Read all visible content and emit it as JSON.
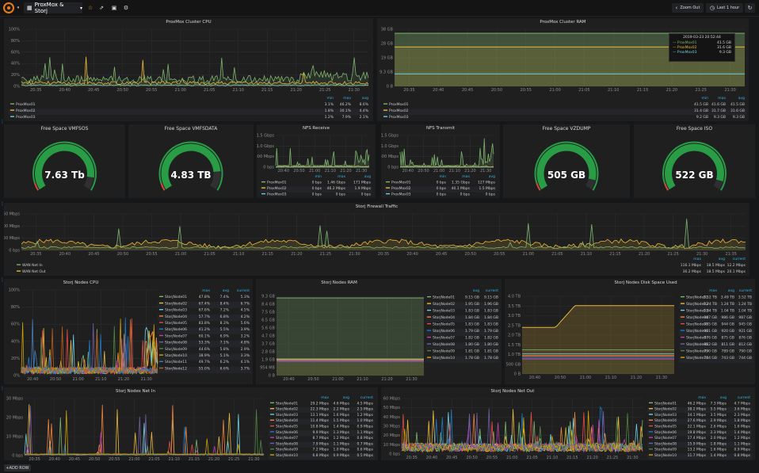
{
  "topbar": {
    "dashboard_title": "ProxMox & Storj",
    "time_range": "Zoom Out",
    "range_label": "Last 1 hour",
    "icons": [
      "grafana-logo-icon",
      "star-icon",
      "share-icon",
      "save-icon",
      "gear-icon",
      "zoom-out-icon",
      "clock-icon",
      "refresh-icon"
    ]
  },
  "colors": {
    "bg": "#161719",
    "panel": "#1f1f20",
    "green": "#7eb26d",
    "yellow": "#eab839",
    "blue": "#6ed0e0",
    "orange": "#ef843c",
    "red": "#e24d42",
    "gauge_green": "#299c46",
    "gauge_red": "#d44a3a"
  },
  "panels": {
    "cpu": {
      "title": "ProxMox Cluster CPU",
      "yticks": [
        "100%",
        "80%",
        "60%",
        "40%",
        "20%",
        "0%"
      ],
      "xticks": [
        "20:35",
        "20:40",
        "20:45",
        "20:50",
        "20:55",
        "21:00",
        "21:05",
        "21:10",
        "21:15",
        "21:20",
        "21:25",
        "21:30"
      ],
      "legend_headers": [
        "min",
        "max",
        "avg"
      ],
      "legend": [
        {
          "name": "ProxMox01",
          "min": "3.1%",
          "max": "46.2%",
          "avg": "8.6%"
        },
        {
          "name": "ProxMox02",
          "min": "1.8%",
          "max": "30.1%",
          "avg": "4.4%"
        },
        {
          "name": "ProxMox03",
          "min": "1.2%",
          "max": "7.9%",
          "avg": "2.1%"
        }
      ]
    },
    "ram": {
      "title": "ProxMox Cluster RAM",
      "yticks": [
        "38 GB",
        "28 GB",
        "19 GB",
        "9.3 GB",
        "0 B"
      ],
      "xticks": [
        "20:35",
        "20:40",
        "20:45",
        "20:50",
        "20:55",
        "21:00",
        "21:05",
        "21:10",
        "21:15",
        "21:20",
        "21:25",
        "21:30"
      ],
      "tooltip": {
        "time": "2019-03-23 20:52:44",
        "rows": [
          {
            "name": "ProxMox01",
            "value": "41.5 GB"
          },
          {
            "name": "ProxMox02",
            "value": "31.6 GB"
          },
          {
            "name": "ProxMox03",
            "value": "9.3 GB"
          }
        ]
      },
      "legend_headers": [
        "min",
        "max",
        "avg"
      ],
      "legend": [
        {
          "name": "ProxMox01",
          "min": "41.5 GB",
          "max": "41.6 GB",
          "avg": "41.5 GB"
        },
        {
          "name": "ProxMox02",
          "min": "31.4 GB",
          "max": "31.7 GB",
          "avg": "31.6 GB"
        },
        {
          "name": "ProxMox03",
          "min": "9.2 GB",
          "max": "9.3 GB",
          "avg": "9.3 GB"
        }
      ]
    },
    "gauge_vmfsos": {
      "title": "Free Space VMFSOS",
      "value": "7.63 Tb",
      "fraction": 0.9
    },
    "gauge_vmfsdata": {
      "title": "Free Space VMFSDATA",
      "value": "4.83 TB",
      "fraction": 0.85
    },
    "nfs_receive": {
      "title": "NFS Receive",
      "yticks": [
        "1.5 Gbps",
        "1.0 Gbps",
        "500 Mbps",
        "0 bps"
      ],
      "xticks": [
        "20:40",
        "20:50",
        "21:00",
        "21:10",
        "21:20",
        "21:30"
      ],
      "legend_headers": [
        "min",
        "max",
        "avg"
      ],
      "legend": [
        {
          "name": "ProxMox01",
          "min": "0 bps",
          "max": "1.46 Gbps",
          "avg": "171 Mbps"
        },
        {
          "name": "ProxMox02",
          "min": "0 bps",
          "max": "46.2 Mbps",
          "avg": "1.9 Mbps"
        },
        {
          "name": "ProxMox03",
          "min": "0 bps",
          "max": "0 bps",
          "avg": "0 bps"
        }
      ]
    },
    "nfs_transmit": {
      "title": "NFS Transmit",
      "yticks": [
        "1.5 Gbps",
        "1.0 Gbps",
        "500 Mbps",
        "0 bps"
      ],
      "xticks": [
        "20:40",
        "20:50",
        "21:00",
        "21:10",
        "21:20",
        "21:30"
      ],
      "legend_headers": [
        "min",
        "max",
        "avg"
      ],
      "legend": [
        {
          "name": "ProxMox01",
          "min": "0 bps",
          "max": "1.35 Gbps",
          "avg": "127 Mbps"
        },
        {
          "name": "ProxMox02",
          "min": "0 bps",
          "max": "40.1 Mbps",
          "avg": "1.5 Mbps"
        },
        {
          "name": "ProxMox03",
          "min": "0 bps",
          "max": "0 bps",
          "avg": "0 bps"
        }
      ]
    },
    "gauge_vzdump": {
      "title": "Free Space VZDUMP",
      "value": "505 GB",
      "fraction": 0.92
    },
    "gauge_iso": {
      "title": "Free Space ISO",
      "value": "522 GB",
      "fraction": 0.93
    },
    "firewall": {
      "title": "Storj Firewall Traffic",
      "yticks": [
        "150 Mbps",
        "100 Mbps",
        "50 Mbps",
        "0 bps"
      ],
      "xticks": [
        "20:35",
        "20:40",
        "20:45",
        "20:50",
        "20:55",
        "21:00",
        "21:05",
        "21:10",
        "21:15",
        "21:20",
        "21:25",
        "21:30",
        "20:35",
        "20:40",
        "20:45",
        "20:50",
        "20:55",
        "21:00",
        "21:05",
        "21:10",
        "21:15",
        "21:20",
        "21:25",
        "21:30",
        "21:35"
      ],
      "legend_headers": [
        "max",
        "avg",
        "current"
      ],
      "legend": [
        {
          "name": "WAN Net In",
          "max": "116.1 Mbps",
          "avg": "18.5 Mbps",
          "current": "12.2 Mbps"
        },
        {
          "name": "WAN Net Out",
          "max": "36.2 Mbps",
          "avg": "18.5 Mbps",
          "current": "20.1 Mbps"
        }
      ]
    },
    "storj_cpu": {
      "title": "Storj Nodes CPU",
      "yticks": [
        "100%",
        "80%",
        "60%",
        "40%",
        "20%",
        "0%"
      ],
      "xticks": [
        "20:40",
        "20:50",
        "21:00",
        "21:10",
        "21:20",
        "21:30"
      ],
      "legend_headers": [
        "max",
        "avg",
        "current"
      ],
      "legend": [
        {
          "name": "StorjNode01",
          "max": "47.8%",
          "avg": "7.4%",
          "current": "5.3%"
        },
        {
          "name": "StorjNode02",
          "max": "67.4%",
          "avg": "8.4%",
          "current": "6.7%"
        },
        {
          "name": "StorjNode03",
          "max": "67.6%",
          "avg": "7.2%",
          "current": "4.5%"
        },
        {
          "name": "StorjNode04",
          "max": "57.7%",
          "avg": "6.8%",
          "current": "4.2%"
        },
        {
          "name": "StorjNode05",
          "max": "83.8%",
          "avg": "8.3%",
          "current": "5.6%"
        },
        {
          "name": "StorjNode06",
          "max": "41.2%",
          "avg": "5.5%",
          "current": "3.9%"
        },
        {
          "name": "StorjNode07",
          "max": "60.1%",
          "avg": "6.9%",
          "current": "3.2%"
        },
        {
          "name": "StorjNode08",
          "max": "53.3%",
          "avg": "7.1%",
          "current": "4.8%"
        },
        {
          "name": "StorjNode09",
          "max": "44.6%",
          "avg": "5.8%",
          "current": "2.9%"
        },
        {
          "name": "StorjNode10",
          "max": "38.9%",
          "avg": "5.1%",
          "current": "3.3%"
        },
        {
          "name": "StorjNode11",
          "max": "49.7%",
          "avg": "6.2%",
          "current": "4.1%"
        },
        {
          "name": "StorjNode12",
          "max": "55.0%",
          "avg": "6.6%",
          "current": "3.7%"
        }
      ]
    },
    "storj_ram": {
      "title": "Storj Nodes RAM",
      "yticks": [
        "9.3 GB",
        "8.4 GB",
        "7.5 GB",
        "6.5 GB",
        "5.6 GB",
        "4.7 GB",
        "3.7 GB",
        "2.8 GB",
        "1.9 GB",
        "954 MB",
        "0 B"
      ],
      "xticks": [
        "20:40",
        "20:50",
        "21:00",
        "21:10",
        "21:20",
        "21:30"
      ],
      "legend_headers": [
        "avg",
        "current"
      ],
      "legend": [
        {
          "name": "StorjNode01",
          "avg": "9.15 GB",
          "current": "9.15 GB"
        },
        {
          "name": "StorjNode02",
          "avg": "1.95 GB",
          "current": "1.96 GB"
        },
        {
          "name": "StorjNode03",
          "avg": "1.83 GB",
          "current": "1.83 GB"
        },
        {
          "name": "StorjNode04",
          "avg": "1.84 GB",
          "current": "1.84 GB"
        },
        {
          "name": "StorjNode05",
          "avg": "1.83 GB",
          "current": "1.83 GB"
        },
        {
          "name": "StorjNode06",
          "avg": "1.79 GB",
          "current": "1.79 GB"
        },
        {
          "name": "StorjNode07",
          "avg": "1.82 GB",
          "current": "1.82 GB"
        },
        {
          "name": "StorjNode08",
          "avg": "1.80 GB",
          "current": "1.80 GB"
        },
        {
          "name": "StorjNode09",
          "avg": "1.81 GB",
          "current": "1.81 GB"
        },
        {
          "name": "StorjNode10",
          "avg": "1.78 GB",
          "current": "1.78 GB"
        }
      ]
    },
    "storj_disk": {
      "title": "Storj Nodes Disk Space Used",
      "yticks": [
        "4.0 TB",
        "3.5 TB",
        "3.0 TB",
        "2.5 TB",
        "2.0 TB",
        "1.5 TB",
        "1.0 TB",
        "500 GB",
        "0 B"
      ],
      "xticks": [
        "20:40",
        "20:50",
        "21:00",
        "21:10",
        "21:20",
        "21:30"
      ],
      "legend_headers": [
        "max",
        "avg",
        "current"
      ],
      "legend": [
        {
          "name": "StorjNode01",
          "max": "3.52 TB",
          "avg": "3.49 TB",
          "current": "3.52 TB"
        },
        {
          "name": "StorjNode02",
          "max": "1.24 TB",
          "avg": "1.24 TB",
          "current": "1.24 TB"
        },
        {
          "name": "StorjNode03",
          "max": "1.04 TB",
          "avg": "1.04 TB",
          "current": "1.04 TB"
        },
        {
          "name": "StorjNode04",
          "max": "987 GB",
          "avg": "986 GB",
          "current": "987 GB"
        },
        {
          "name": "StorjNode05",
          "max": "945 GB",
          "avg": "944 GB",
          "current": "945 GB"
        },
        {
          "name": "StorjNode06",
          "max": "921 GB",
          "avg": "920 GB",
          "current": "921 GB"
        },
        {
          "name": "StorjNode07",
          "max": "876 GB",
          "avg": "875 GB",
          "current": "876 GB"
        },
        {
          "name": "StorjNode08",
          "max": "812 GB",
          "avg": "811 GB",
          "current": "812 GB"
        },
        {
          "name": "StorjNode09",
          "max": "790 GB",
          "avg": "789 GB",
          "current": "790 GB"
        },
        {
          "name": "StorjNode10",
          "max": "744 GB",
          "avg": "743 GB",
          "current": "744 GB"
        }
      ]
    },
    "storj_netin": {
      "title": "Storj Nodes Net In",
      "yticks": [
        "30 Mbps",
        "20 Mbps",
        "10 Mbps",
        "0 bps"
      ],
      "xticks": [
        "20:35",
        "20:40",
        "20:45",
        "20:50",
        "20:55",
        "21:00",
        "21:05",
        "21:10",
        "21:15",
        "21:20",
        "21:25",
        "21:30"
      ],
      "legend_headers": [
        "max",
        "avg",
        "current"
      ],
      "legend": [
        {
          "name": "StorjNode01",
          "max": "29.2 Mbps",
          "avg": "4.6 Mbps",
          "current": "4.5 Mbps"
        },
        {
          "name": "StorjNode02",
          "max": "22.3 Mbps",
          "avg": "2.2 Mbps",
          "current": "2.5 Mbps"
        },
        {
          "name": "StorjNode03",
          "max": "13.1 Mbps",
          "avg": "1.6 Mbps",
          "current": "1.2 Mbps"
        },
        {
          "name": "StorjNode04",
          "max": "11.4 Mbps",
          "avg": "1.5 Mbps",
          "current": "1.0 Mbps"
        },
        {
          "name": "StorjNode05",
          "max": "10.8 Mbps",
          "avg": "1.4 Mbps",
          "current": "0.9 Mbps"
        },
        {
          "name": "StorjNode06",
          "max": "9.9 Mbps",
          "avg": "1.3 Mbps",
          "current": "1.1 Mbps"
        },
        {
          "name": "StorjNode07",
          "max": "8.7 Mbps",
          "avg": "1.2 Mbps",
          "current": "0.8 Mbps"
        },
        {
          "name": "StorjNode08",
          "max": "7.9 Mbps",
          "avg": "1.1 Mbps",
          "current": "0.7 Mbps"
        },
        {
          "name": "StorjNode09",
          "max": "7.2 Mbps",
          "avg": "1.0 Mbps",
          "current": "0.6 Mbps"
        },
        {
          "name": "StorjNode10",
          "max": "6.8 Mbps",
          "avg": "0.9 Mbps",
          "current": "0.5 Mbps"
        }
      ]
    },
    "storj_netout": {
      "title": "Storj Nodes Net Out",
      "yticks": [
        "60 Mbps",
        "50 Mbps",
        "40 Mbps",
        "30 Mbps",
        "20 Mbps",
        "10 Mbps",
        "0 bps"
      ],
      "xticks": [
        "20:35",
        "20:40",
        "20:45",
        "20:50",
        "20:55",
        "21:00",
        "21:05",
        "21:10",
        "21:15",
        "21:20",
        "21:25",
        "21:30"
      ],
      "legend_headers": [
        "max",
        "avg",
        "current"
      ],
      "legend": [
        {
          "name": "StorjNode01",
          "max": "46.2 Mbps",
          "avg": "7.3 Mbps",
          "current": "4.7 Mbps"
        },
        {
          "name": "StorjNode02",
          "max": "38.2 Mbps",
          "avg": "5.5 Mbps",
          "current": "3.6 Mbps"
        },
        {
          "name": "StorjNode03",
          "max": "34.1 Mbps",
          "avg": "3.5 Mbps",
          "current": "2.3 Mbps"
        },
        {
          "name": "StorjNode04",
          "max": "27.6 Mbps",
          "avg": "2.9 Mbps",
          "current": "1.8 Mbps"
        },
        {
          "name": "StorjNode05",
          "max": "22.1 Mbps",
          "avg": "2.6 Mbps",
          "current": "1.6 Mbps"
        },
        {
          "name": "StorjNode06",
          "max": "19.8 Mbps",
          "avg": "2.3 Mbps",
          "current": "1.4 Mbps"
        },
        {
          "name": "StorjNode07",
          "max": "17.4 Mbps",
          "avg": "2.0 Mbps",
          "current": "1.2 Mbps"
        },
        {
          "name": "StorjNode08",
          "max": "15.9 Mbps",
          "avg": "1.8 Mbps",
          "current": "1.1 Mbps"
        },
        {
          "name": "StorjNode09",
          "max": "13.2 Mbps",
          "avg": "1.6 Mbps",
          "current": "0.9 Mbps"
        },
        {
          "name": "StorjNode10",
          "max": "11.7 Mbps",
          "avg": "1.4 Mbps",
          "current": "0.8 Mbps"
        }
      ]
    }
  },
  "add_row": "+ADD ROW"
}
